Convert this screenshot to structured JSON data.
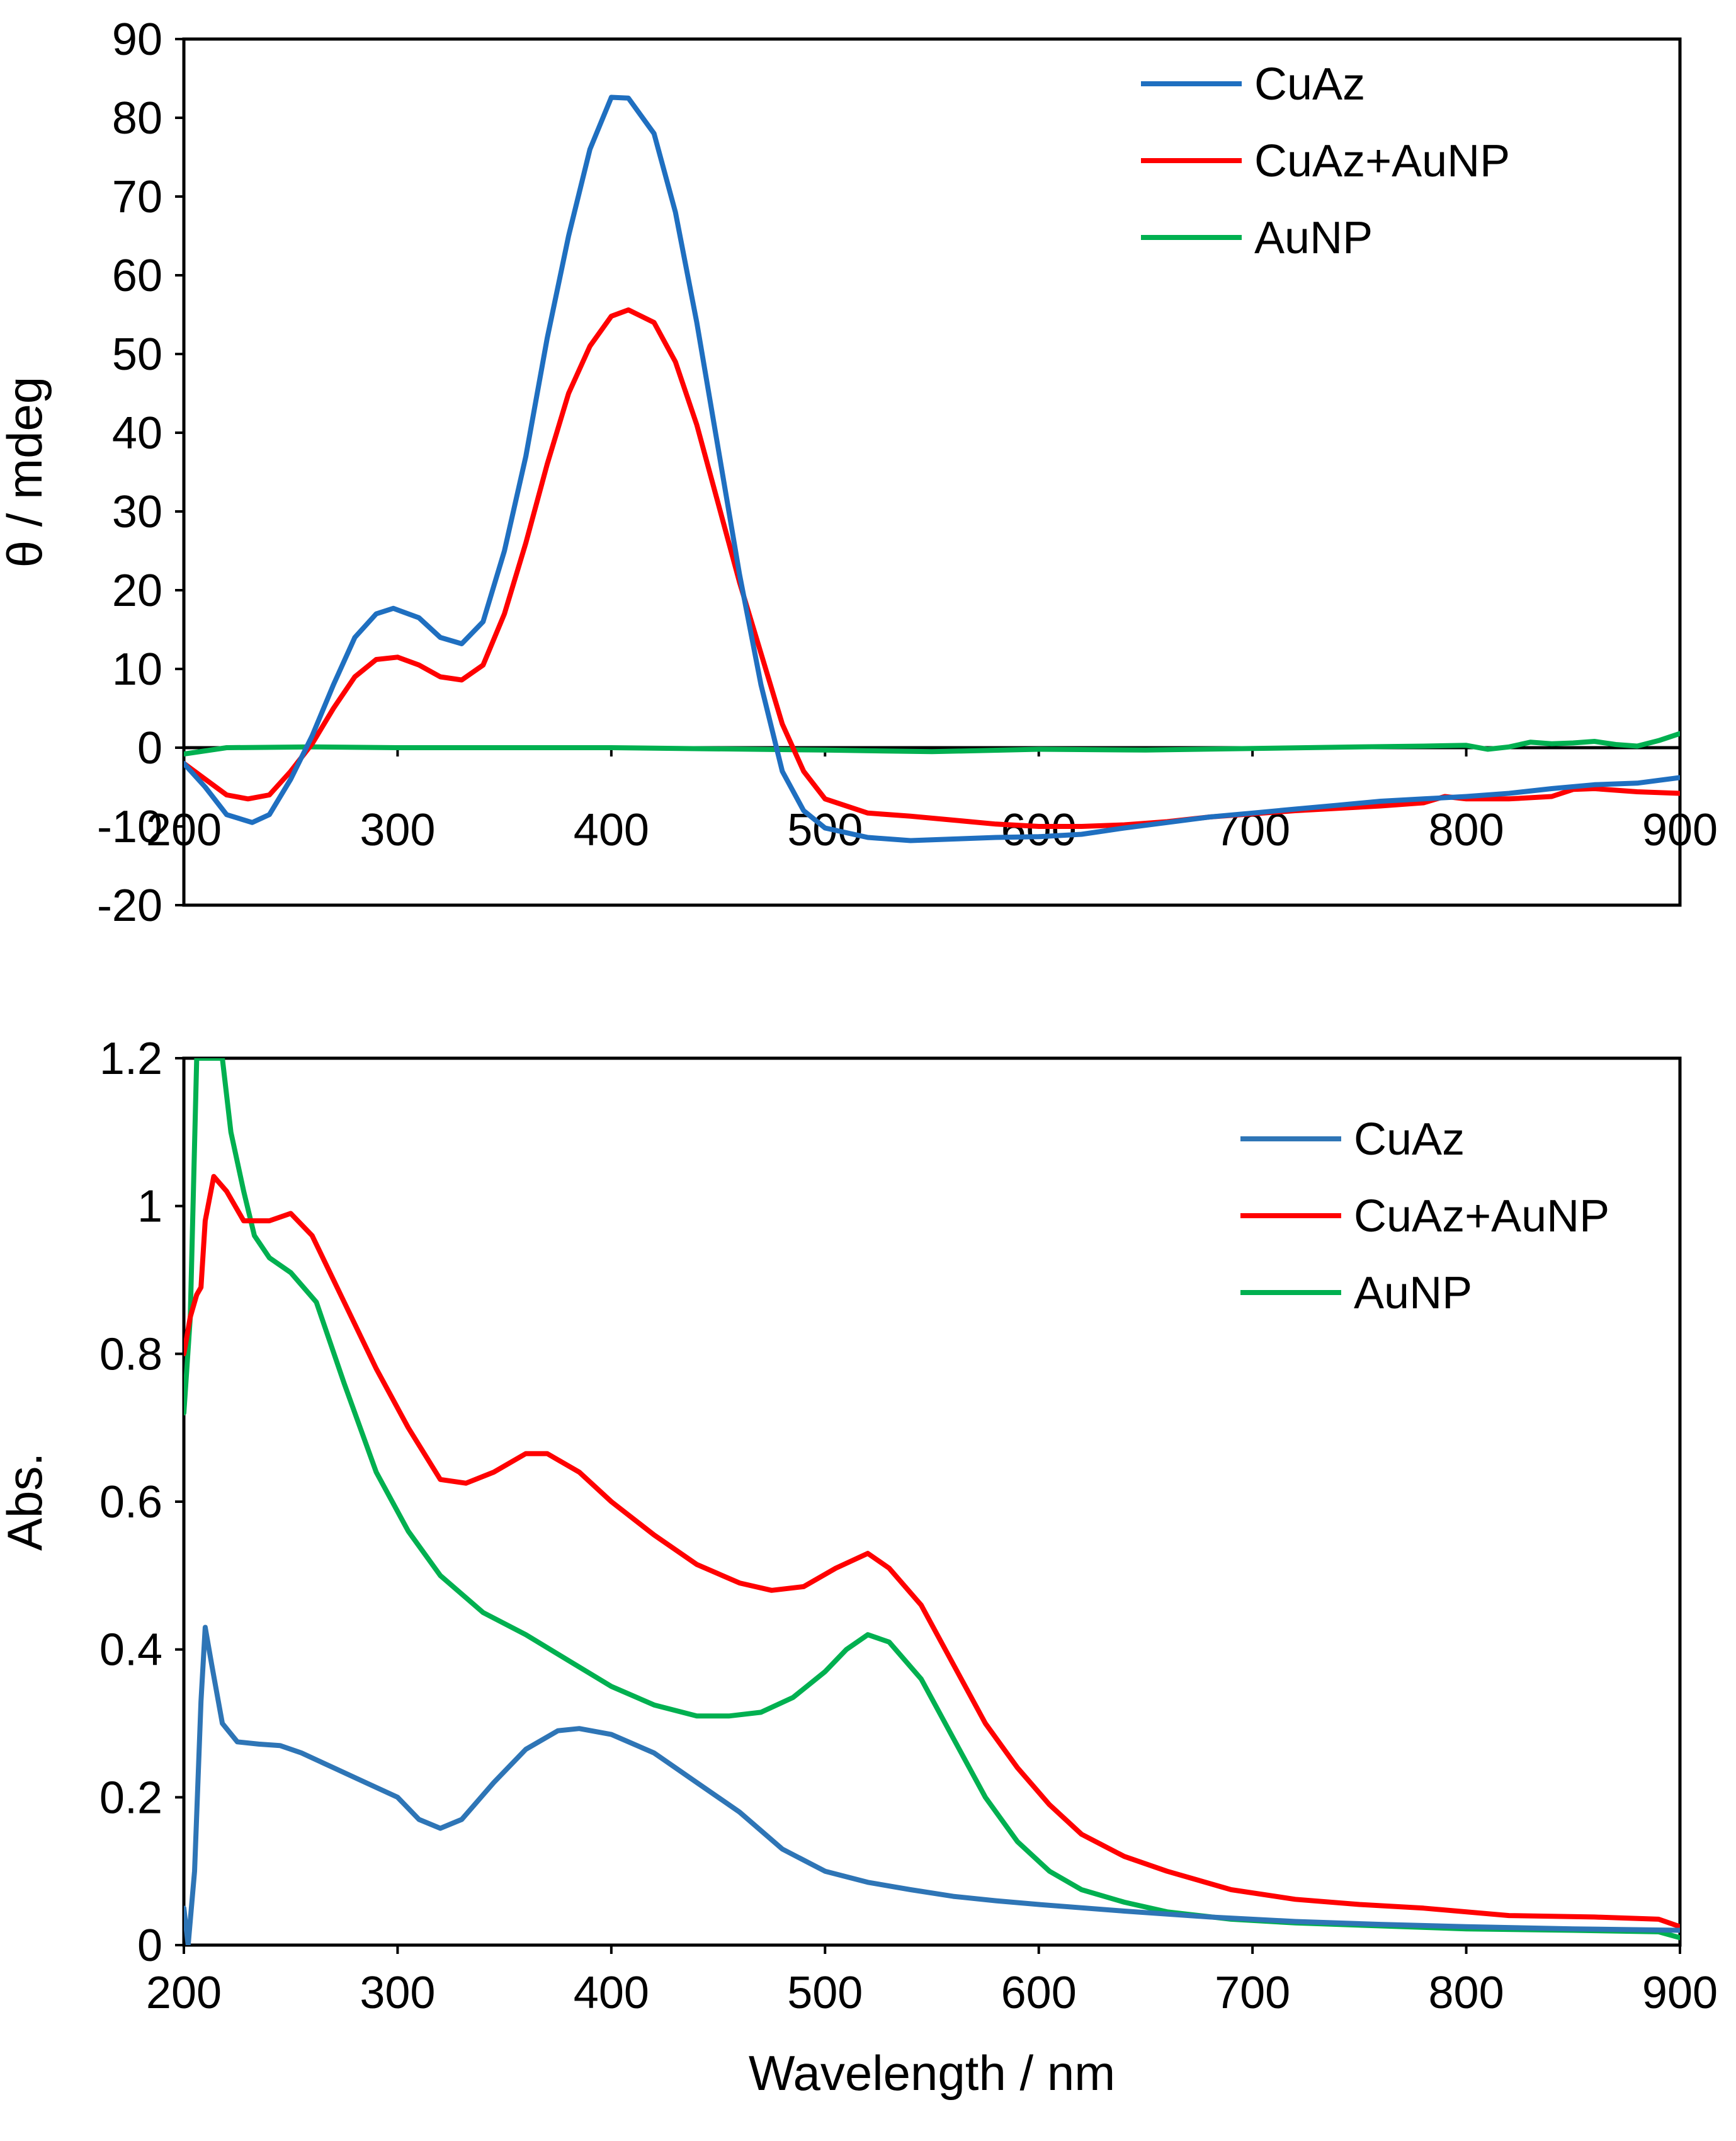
{
  "chart_data": [
    {
      "type": "line",
      "title": "",
      "xlabel": "",
      "ylabel": "θ / mdeg",
      "xlim": [
        200,
        900
      ],
      "ylim": [
        -20,
        90
      ],
      "xticks": [
        200,
        300,
        400,
        500,
        600,
        700,
        800,
        900
      ],
      "yticks": [
        -20,
        -10,
        0,
        10,
        20,
        30,
        40,
        50,
        60,
        70,
        80,
        90
      ],
      "zero_line": true,
      "legend_position": "top-right",
      "series": [
        {
          "name": "CuAz",
          "color": "#1F6FC0",
          "points": [
            [
              200,
              -2
            ],
            [
              210,
              -5
            ],
            [
              220,
              -8.5
            ],
            [
              232,
              -9.5
            ],
            [
              240,
              -8.5
            ],
            [
              250,
              -4
            ],
            [
              260,
              1.5
            ],
            [
              270,
              8
            ],
            [
              280,
              14
            ],
            [
              290,
              17
            ],
            [
              298,
              17.7
            ],
            [
              310,
              16.5
            ],
            [
              320,
              14
            ],
            [
              330,
              13.2
            ],
            [
              340,
              16
            ],
            [
              350,
              25
            ],
            [
              360,
              37
            ],
            [
              370,
              52
            ],
            [
              380,
              65
            ],
            [
              390,
              76
            ],
            [
              400,
              82.6
            ],
            [
              408,
              82.5
            ],
            [
              420,
              78
            ],
            [
              430,
              68
            ],
            [
              440,
              54
            ],
            [
              450,
              38
            ],
            [
              460,
              22
            ],
            [
              470,
              8
            ],
            [
              480,
              -3
            ],
            [
              490,
              -8
            ],
            [
              500,
              -10.2
            ],
            [
              520,
              -11.4
            ],
            [
              540,
              -11.8
            ],
            [
              560,
              -11.6
            ],
            [
              580,
              -11.4
            ],
            [
              600,
              -11.3
            ],
            [
              620,
              -11
            ],
            [
              640,
              -10.2
            ],
            [
              660,
              -9.5
            ],
            [
              680,
              -8.8
            ],
            [
              700,
              -8.3
            ],
            [
              720,
              -7.8
            ],
            [
              740,
              -7.3
            ],
            [
              760,
              -6.8
            ],
            [
              780,
              -6.5
            ],
            [
              800,
              -6.2
            ],
            [
              820,
              -5.8
            ],
            [
              840,
              -5.2
            ],
            [
              860,
              -4.7
            ],
            [
              880,
              -4.5
            ],
            [
              900,
              -3.8
            ]
          ]
        },
        {
          "name": "CuAz+AuNP",
          "color": "#FF0000",
          "points": [
            [
              200,
              -2
            ],
            [
              210,
              -4
            ],
            [
              220,
              -6
            ],
            [
              230,
              -6.5
            ],
            [
              240,
              -6
            ],
            [
              250,
              -3
            ],
            [
              260,
              0.5
            ],
            [
              270,
              5
            ],
            [
              280,
              9
            ],
            [
              290,
              11.2
            ],
            [
              300,
              11.5
            ],
            [
              310,
              10.5
            ],
            [
              320,
              9
            ],
            [
              330,
              8.6
            ],
            [
              340,
              10.5
            ],
            [
              350,
              17
            ],
            [
              360,
              26
            ],
            [
              370,
              36
            ],
            [
              380,
              45
            ],
            [
              390,
              51
            ],
            [
              400,
              54.8
            ],
            [
              408,
              55.6
            ],
            [
              420,
              54
            ],
            [
              430,
              49
            ],
            [
              440,
              41
            ],
            [
              450,
              31
            ],
            [
              460,
              21
            ],
            [
              470,
              12
            ],
            [
              480,
              3
            ],
            [
              490,
              -3
            ],
            [
              500,
              -6.5
            ],
            [
              520,
              -8.3
            ],
            [
              540,
              -8.7
            ],
            [
              560,
              -9.2
            ],
            [
              580,
              -9.7
            ],
            [
              600,
              -10
            ],
            [
              620,
              -10
            ],
            [
              640,
              -9.8
            ],
            [
              660,
              -9.4
            ],
            [
              680,
              -8.8
            ],
            [
              700,
              -8.4
            ],
            [
              720,
              -8
            ],
            [
              740,
              -7.7
            ],
            [
              760,
              -7.4
            ],
            [
              780,
              -7
            ],
            [
              790,
              -6.2
            ],
            [
              800,
              -6.5
            ],
            [
              820,
              -6.5
            ],
            [
              840,
              -6.2
            ],
            [
              850,
              -5.3
            ],
            [
              860,
              -5.2
            ],
            [
              880,
              -5.6
            ],
            [
              900,
              -5.8
            ]
          ]
        },
        {
          "name": "AuNP",
          "color": "#00B050",
          "points": [
            [
              200,
              -0.8
            ],
            [
              220,
              0
            ],
            [
              260,
              0.1
            ],
            [
              300,
              0
            ],
            [
              400,
              0
            ],
            [
              500,
              -0.3
            ],
            [
              550,
              -0.5
            ],
            [
              600,
              -0.2
            ],
            [
              650,
              -0.3
            ],
            [
              700,
              -0.1
            ],
            [
              750,
              0.1
            ],
            [
              780,
              0.2
            ],
            [
              800,
              0.3
            ],
            [
              810,
              -0.2
            ],
            [
              820,
              0.1
            ],
            [
              830,
              0.7
            ],
            [
              840,
              0.5
            ],
            [
              850,
              0.6
            ],
            [
              860,
              0.8
            ],
            [
              870,
              0.4
            ],
            [
              880,
              0.2
            ],
            [
              890,
              0.9
            ],
            [
              900,
              1.8
            ]
          ]
        }
      ]
    },
    {
      "type": "line",
      "title": "",
      "xlabel": "Wavelength / nm",
      "ylabel": "Abs.",
      "xlim": [
        200,
        900
      ],
      "ylim": [
        0,
        1.2
      ],
      "xticks": [
        200,
        300,
        400,
        500,
        600,
        700,
        800,
        900
      ],
      "yticks": [
        0,
        0.2,
        0.4,
        0.6,
        0.8,
        1,
        1.2
      ],
      "legend_position": "top-right",
      "series": [
        {
          "name": "CuAz",
          "color": "#2E75B6",
          "points": [
            [
              200,
              0.05
            ],
            [
              202,
              0
            ],
            [
              205,
              0.1
            ],
            [
              208,
              0.33
            ],
            [
              210,
              0.43
            ],
            [
              213,
              0.38
            ],
            [
              218,
              0.3
            ],
            [
              225,
              0.275
            ],
            [
              235,
              0.272
            ],
            [
              245,
              0.27
            ],
            [
              255,
              0.26
            ],
            [
              270,
              0.24
            ],
            [
              285,
              0.22
            ],
            [
              300,
              0.2
            ],
            [
              310,
              0.17
            ],
            [
              320,
              0.158
            ],
            [
              330,
              0.17
            ],
            [
              345,
              0.22
            ],
            [
              360,
              0.265
            ],
            [
              375,
              0.29
            ],
            [
              385,
              0.293
            ],
            [
              400,
              0.285
            ],
            [
              420,
              0.26
            ],
            [
              440,
              0.22
            ],
            [
              460,
              0.18
            ],
            [
              480,
              0.13
            ],
            [
              500,
              0.1
            ],
            [
              520,
              0.085
            ],
            [
              540,
              0.075
            ],
            [
              560,
              0.066
            ],
            [
              580,
              0.06
            ],
            [
              600,
              0.055
            ],
            [
              640,
              0.046
            ],
            [
              680,
              0.038
            ],
            [
              720,
              0.032
            ],
            [
              760,
              0.028
            ],
            [
              800,
              0.025
            ],
            [
              850,
              0.022
            ],
            [
              900,
              0.02
            ]
          ]
        },
        {
          "name": "CuAz+AuNP",
          "color": "#FF0000",
          "points": [
            [
              200,
              0.8
            ],
            [
              203,
              0.85
            ],
            [
              206,
              0.88
            ],
            [
              208,
              0.89
            ],
            [
              210,
              0.98
            ],
            [
              214,
              1.04
            ],
            [
              220,
              1.02
            ],
            [
              228,
              0.98
            ],
            [
              240,
              0.98
            ],
            [
              250,
              0.99
            ],
            [
              260,
              0.96
            ],
            [
              275,
              0.87
            ],
            [
              290,
              0.78
            ],
            [
              305,
              0.7
            ],
            [
              320,
              0.63
            ],
            [
              332,
              0.625
            ],
            [
              345,
              0.64
            ],
            [
              360,
              0.665
            ],
            [
              370,
              0.665
            ],
            [
              385,
              0.64
            ],
            [
              400,
              0.6
            ],
            [
              420,
              0.555
            ],
            [
              440,
              0.515
            ],
            [
              460,
              0.49
            ],
            [
              475,
              0.48
            ],
            [
              490,
              0.485
            ],
            [
              505,
              0.51
            ],
            [
              520,
              0.53
            ],
            [
              530,
              0.51
            ],
            [
              545,
              0.46
            ],
            [
              560,
              0.38
            ],
            [
              575,
              0.3
            ],
            [
              590,
              0.24
            ],
            [
              605,
              0.19
            ],
            [
              620,
              0.15
            ],
            [
              640,
              0.12
            ],
            [
              660,
              0.1
            ],
            [
              690,
              0.075
            ],
            [
              720,
              0.062
            ],
            [
              750,
              0.055
            ],
            [
              780,
              0.05
            ],
            [
              820,
              0.04
            ],
            [
              860,
              0.038
            ],
            [
              890,
              0.035
            ],
            [
              900,
              0.025
            ]
          ]
        },
        {
          "name": "AuNP",
          "color": "#00B050",
          "points": [
            [
              200,
              0.72
            ],
            [
              203,
              0.85
            ],
            [
              206,
              1.2
            ],
            [
              218,
              1.2
            ],
            [
              222,
              1.1
            ],
            [
              228,
              1.02
            ],
            [
              233,
              0.96
            ],
            [
              240,
              0.93
            ],
            [
              250,
              0.91
            ],
            [
              262,
              0.87
            ],
            [
              275,
              0.76
            ],
            [
              290,
              0.64
            ],
            [
              305,
              0.56
            ],
            [
              320,
              0.5
            ],
            [
              340,
              0.45
            ],
            [
              360,
              0.42
            ],
            [
              380,
              0.385
            ],
            [
              400,
              0.35
            ],
            [
              420,
              0.325
            ],
            [
              440,
              0.31
            ],
            [
              455,
              0.31
            ],
            [
              470,
              0.315
            ],
            [
              485,
              0.335
            ],
            [
              500,
              0.37
            ],
            [
              510,
              0.4
            ],
            [
              520,
              0.42
            ],
            [
              530,
              0.41
            ],
            [
              545,
              0.36
            ],
            [
              560,
              0.28
            ],
            [
              575,
              0.2
            ],
            [
              590,
              0.14
            ],
            [
              605,
              0.1
            ],
            [
              620,
              0.075
            ],
            [
              640,
              0.058
            ],
            [
              660,
              0.045
            ],
            [
              690,
              0.035
            ],
            [
              720,
              0.03
            ],
            [
              760,
              0.026
            ],
            [
              800,
              0.022
            ],
            [
              850,
              0.02
            ],
            [
              890,
              0.018
            ],
            [
              900,
              0.01
            ]
          ]
        }
      ]
    }
  ]
}
